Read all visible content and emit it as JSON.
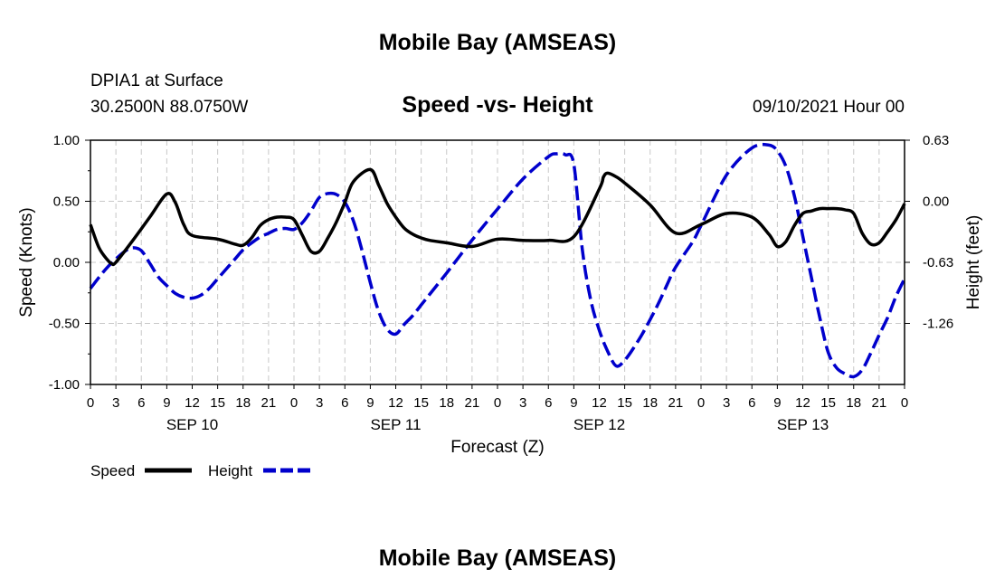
{
  "header": {
    "main_title": "Mobile Bay (AMSEAS)",
    "station": "DPIA1 at Surface",
    "coords": "30.2500N  88.0750W",
    "plot_title": "Speed -vs- Height",
    "datetime": "09/10/2021 Hour 00"
  },
  "footer": {
    "title": "Mobile Bay (AMSEAS)"
  },
  "chart_data": {
    "type": "line",
    "title": "Speed -vs- Height",
    "xlabel": "Forecast (Z)",
    "ylabel": "Speed (Knots)",
    "y2label": "Height (feet)",
    "xlim": [
      0,
      96
    ],
    "ylim": [
      -1.0,
      1.0
    ],
    "y2lim": [
      -1.89,
      0.63
    ],
    "x_ticks": [
      0,
      3,
      6,
      9,
      12,
      15,
      18,
      21,
      24,
      27,
      30,
      33,
      36,
      39,
      42,
      45,
      48,
      51,
      54,
      57,
      60,
      63,
      66,
      69,
      72,
      75,
      78,
      81,
      84,
      87,
      90,
      93,
      96
    ],
    "x_tick_labels": [
      "0",
      "3",
      "6",
      "9",
      "12",
      "15",
      "18",
      "21",
      "0",
      "3",
      "6",
      "9",
      "12",
      "15",
      "18",
      "21",
      "0",
      "3",
      "6",
      "9",
      "12",
      "15",
      "18",
      "21",
      "0",
      "3",
      "6",
      "9",
      "12",
      "15",
      "18",
      "21",
      "0"
    ],
    "day_labels": [
      {
        "x": 12,
        "label": "SEP 10"
      },
      {
        "x": 36,
        "label": "SEP 11"
      },
      {
        "x": 60,
        "label": "SEP 12"
      },
      {
        "x": 84,
        "label": "SEP 13"
      }
    ],
    "y_ticks": [
      1.0,
      0.5,
      0.0,
      -0.5,
      -1.0
    ],
    "y_tick_labels": [
      "1.00",
      "0.50",
      "0.00",
      "-0.50",
      "-1.00"
    ],
    "y2_ticks": [
      0.63,
      0.0,
      -0.63,
      -1.26
    ],
    "y2_tick_labels": [
      "0.63",
      "0.00",
      "-0.63",
      "-1.26"
    ],
    "grid": true,
    "legend": [
      "Speed",
      "Height"
    ],
    "legend_placement": "bottom-left",
    "series": [
      {
        "name": "Speed",
        "axis": "left",
        "color": "#000000",
        "dash": "solid",
        "x": [
          0,
          1,
          2,
          2.5,
          3,
          5,
          7,
          9,
          10,
          11,
          12,
          15,
          17,
          18,
          19,
          20,
          21,
          22,
          23,
          24,
          25,
          26,
          27,
          28,
          29,
          30,
          31,
          33,
          34,
          35,
          36,
          37,
          38,
          39,
          40,
          42,
          45,
          48,
          51,
          54,
          57,
          60,
          60.5,
          61,
          62,
          63,
          66,
          69,
          72,
          75,
          78,
          80,
          81,
          82,
          83,
          84,
          85,
          86,
          87,
          88,
          89,
          90,
          91,
          92,
          93,
          94,
          95,
          96
        ],
        "values": [
          0.31,
          0.12,
          0.02,
          -0.01,
          0.0,
          0.18,
          0.37,
          0.56,
          0.49,
          0.31,
          0.22,
          0.19,
          0.15,
          0.14,
          0.2,
          0.3,
          0.35,
          0.37,
          0.37,
          0.35,
          0.22,
          0.09,
          0.09,
          0.2,
          0.33,
          0.49,
          0.66,
          0.76,
          0.63,
          0.48,
          0.37,
          0.28,
          0.23,
          0.2,
          0.18,
          0.16,
          0.13,
          0.19,
          0.18,
          0.18,
          0.21,
          0.6,
          0.7,
          0.73,
          0.7,
          0.65,
          0.47,
          0.24,
          0.31,
          0.4,
          0.37,
          0.23,
          0.13,
          0.17,
          0.3,
          0.4,
          0.42,
          0.44,
          0.44,
          0.44,
          0.43,
          0.4,
          0.24,
          0.15,
          0.16,
          0.25,
          0.35,
          0.48
        ]
      },
      {
        "name": "Height",
        "axis": "right",
        "color": "#0000cc",
        "dash": "dashed",
        "x": [
          0,
          2,
          4,
          5,
          6,
          7,
          8,
          9,
          10,
          11,
          12,
          13,
          14,
          15,
          17,
          18,
          19,
          20,
          21,
          22,
          23,
          24,
          25,
          26,
          27,
          28,
          29,
          30,
          31,
          32,
          33,
          34,
          35,
          36,
          37,
          38,
          39,
          40,
          42,
          45,
          48,
          51,
          54,
          55,
          56,
          57,
          58,
          59,
          60,
          61,
          62,
          63,
          64,
          65,
          66,
          67,
          68,
          69,
          71,
          72,
          75,
          78,
          80,
          81,
          82,
          83,
          84,
          85,
          86,
          87,
          88,
          89,
          90,
          91,
          92,
          93,
          94,
          95,
          96
        ],
        "values": [
          -0.9,
          -0.68,
          -0.52,
          -0.48,
          -0.51,
          -0.64,
          -0.78,
          -0.87,
          -0.95,
          -0.99,
          -1.0,
          -0.97,
          -0.9,
          -0.8,
          -0.6,
          -0.5,
          -0.43,
          -0.37,
          -0.33,
          -0.29,
          -0.28,
          -0.29,
          -0.22,
          -0.1,
          0.04,
          0.08,
          0.07,
          -0.01,
          -0.2,
          -0.5,
          -0.84,
          -1.14,
          -1.32,
          -1.37,
          -1.27,
          -1.18,
          -1.07,
          -0.96,
          -0.74,
          -0.4,
          -0.08,
          0.23,
          0.46,
          0.49,
          0.48,
          0.38,
          -0.5,
          -1.02,
          -1.33,
          -1.55,
          -1.7,
          -1.64,
          -1.52,
          -1.38,
          -1.22,
          -1.05,
          -0.86,
          -0.68,
          -0.42,
          -0.25,
          0.27,
          0.55,
          0.58,
          0.52,
          0.36,
          0.06,
          -0.36,
          -0.78,
          -1.2,
          -1.56,
          -1.72,
          -1.78,
          -1.81,
          -1.74,
          -1.57,
          -1.38,
          -1.2,
          -0.98,
          -0.8
        ]
      }
    ]
  }
}
